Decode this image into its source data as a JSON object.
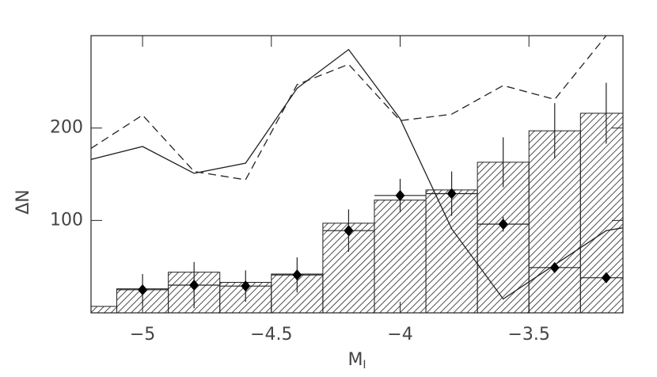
{
  "chart_data": {
    "type": "histogram",
    "xlabel": {
      "text": "M",
      "sub": "I"
    },
    "ylabel": "ΔN",
    "xlim": [
      -5.2,
      -3.135
    ],
    "ylim": [
      0,
      300
    ],
    "xticks": [
      {
        "value": -5,
        "label": "−5"
      },
      {
        "value": -4.5,
        "label": "−4.5"
      },
      {
        "value": -4,
        "label": "−4"
      },
      {
        "value": -3.5,
        "label": "−3.5"
      }
    ],
    "yticks": [
      100,
      200
    ],
    "bins": [
      -5.2,
      -5.1,
      -4.9,
      -4.7,
      -4.5,
      -4.3,
      -4.1,
      -3.9,
      -3.7,
      -3.5,
      -3.3,
      -3.1
    ],
    "values": [
      7,
      26,
      44,
      33,
      42,
      97,
      122,
      133,
      163,
      197,
      216
    ],
    "errors": [
      null,
      null,
      null,
      null,
      null,
      null,
      null,
      null,
      27,
      30,
      33
    ],
    "lines": [
      {
        "style": "solid",
        "x": [
          -5.2,
          -5.0,
          -4.8,
          -4.6,
          -4.4,
          -4.2,
          -4.0,
          -3.8,
          -3.6,
          -3.4,
          -3.2,
          -3.135
        ],
        "values": [
          166,
          180,
          151,
          162,
          243,
          285,
          210,
          91,
          15,
          52,
          89,
          92
        ]
      },
      {
        "style": "dashed",
        "x": [
          -5.2,
          -5.0,
          -4.8,
          -4.6,
          -4.4,
          -4.2,
          -4.0,
          -3.8,
          -3.6,
          -3.4,
          -3.2
        ],
        "values": [
          178,
          214,
          153,
          144,
          247,
          269,
          208,
          215,
          246,
          231,
          300
        ]
      }
    ],
    "points": {
      "x": [
        -5.0,
        -4.8,
        -4.6,
        -4.4,
        -4.2,
        -4.0,
        -3.8,
        -3.6,
        -3.4,
        -3.2
      ],
      "values": [
        25,
        30,
        29,
        41,
        89,
        127,
        129,
        96,
        49,
        38
      ],
      "xerr": [
        0.1,
        0.1,
        0.1,
        0.1,
        0.1,
        0.1,
        0.1,
        0.1,
        0.1,
        0.1
      ],
      "yerr": [
        17,
        25,
        17,
        19,
        23,
        18,
        24,
        8,
        5,
        5
      ]
    }
  }
}
